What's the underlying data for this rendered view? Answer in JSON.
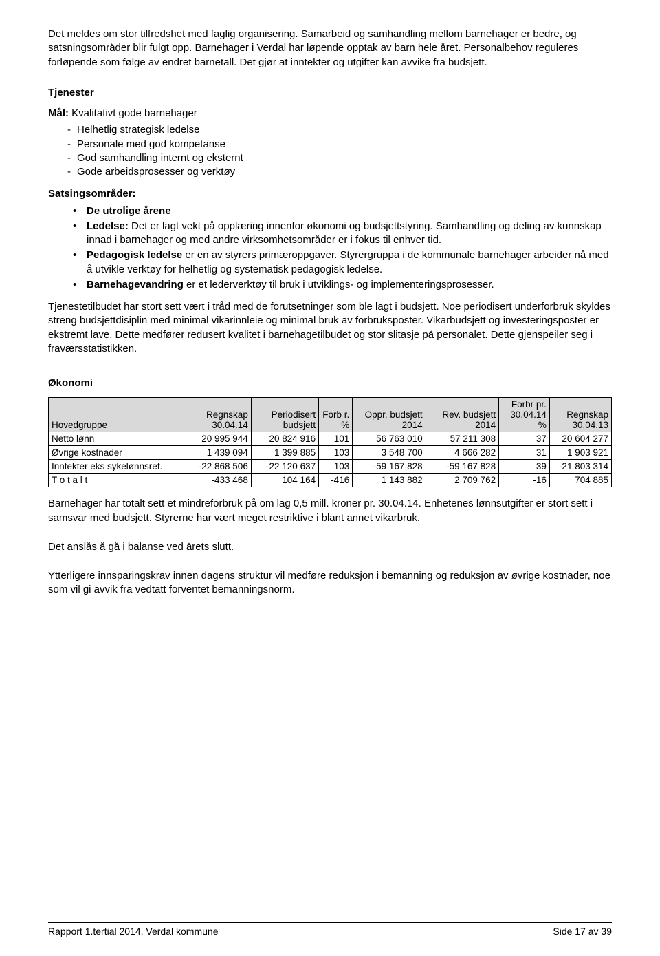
{
  "intro": {
    "p1": "Det meldes om stor tilfredshet med faglig organisering. Samarbeid og samhandling mellom barnehager er bedre, og satsningsområder blir fulgt opp. Barnehager i Verdal har løpende opptak av barn hele året. Personalbehov reguleres forløpende som følge av endret barnetall. Det gjør at inntekter og utgifter kan avvike fra budsjett."
  },
  "tjenester": {
    "heading": "Tjenester",
    "mal_label": "Mål:",
    "mal_text": " Kvalitativt gode barnehager",
    "mal_items": [
      "Helhetlig strategisk ledelse",
      "Personale med god kompetanse",
      "God samhandling internt og eksternt",
      "Gode arbeidsprosesser og verktøy"
    ],
    "sats_label": "Satsingsområder:",
    "bullets": [
      {
        "bold": "De utrolige årene",
        "rest": ""
      },
      {
        "bold": "Ledelse:",
        "rest": " Det er lagt vekt på opplæring innenfor økonomi og budsjettstyring. Samhandling og deling av kunnskap innad i barnehager og med andre virksomhetsområder er i fokus til enhver tid."
      },
      {
        "bold": "Pedagogisk ledelse",
        "rest": " er en av styrers primæroppgaver. Styrergruppa i de kommunale barnehager arbeider nå med å utvikle verktøy for helhetlig og systematisk pedagogisk ledelse."
      },
      {
        "bold": "Barnehagevandring",
        "rest": " er et lederverktøy til bruk i utviklings- og implementeringsprosesser."
      }
    ],
    "para": "Tjenestetilbudet har stort sett vært i tråd med de forutsetninger som ble lagt i budsjett. Noe periodisert underforbruk skyldes streng budsjettdisiplin med minimal vikarinnleie og minimal bruk av forbruksposter. Vikarbudsjett og investeringsposter er ekstremt lave. Dette medfører redusert kvalitet i barnehagetilbudet og stor slitasje på personalet. Dette gjenspeiler seg i fraværsstatistikken."
  },
  "okonomi": {
    "heading": "Økonomi",
    "table": {
      "headers": [
        "Hovedgruppe",
        "Regnskap 30.04.14",
        "Periodisert budsjett",
        "Forb\nr. %",
        "Oppr. budsjett 2014",
        "Rev. budsjett 2014",
        "Forbr pr. 30.04.14 %",
        "Regnskap 30.04.13"
      ],
      "rows": [
        [
          "Netto lønn",
          "20 995 944",
          "20 824 916",
          "101",
          "56 763 010",
          "57 211 308",
          "37",
          "20 604 277"
        ],
        [
          "Øvrige kostnader",
          "1 439 094",
          "1 399 885",
          "103",
          "3 548 700",
          "4 666 282",
          "31",
          "1 903 921"
        ],
        [
          "Inntekter eks sykelønnsref.",
          "-22 868 506",
          "-22 120 637",
          "103",
          "-59 167 828",
          "-59 167 828",
          "39",
          "-21 803 314"
        ],
        [
          "T o t a l t",
          "-433 468",
          "104 164",
          "-416",
          "1 143 882",
          "2 709 762",
          "-16",
          "704 885"
        ]
      ],
      "col_widths": [
        "24%",
        "12%",
        "12%",
        "6%",
        "13%",
        "13%",
        "9%",
        "12%"
      ]
    },
    "p1": "Barnehager har totalt sett et mindreforbruk på om lag 0,5 mill. kroner pr. 30.04.14. Enhetenes lønnsutgifter er stort sett i samsvar med budsjett. Styrerne har vært meget restriktive i blant annet vikarbruk.",
    "p2": "Det anslås å gå i balanse ved årets slutt.",
    "p3": "Ytterligere innsparingskrav innen dagens struktur vil medføre reduksjon i bemanning og reduksjon av øvrige kostnader, noe som vil gi avvik fra vedtatt forventet bemanningsnorm."
  },
  "footer": {
    "left": "Rapport 1.tertial 2014, Verdal kommune",
    "right": "Side 17 av 39"
  }
}
